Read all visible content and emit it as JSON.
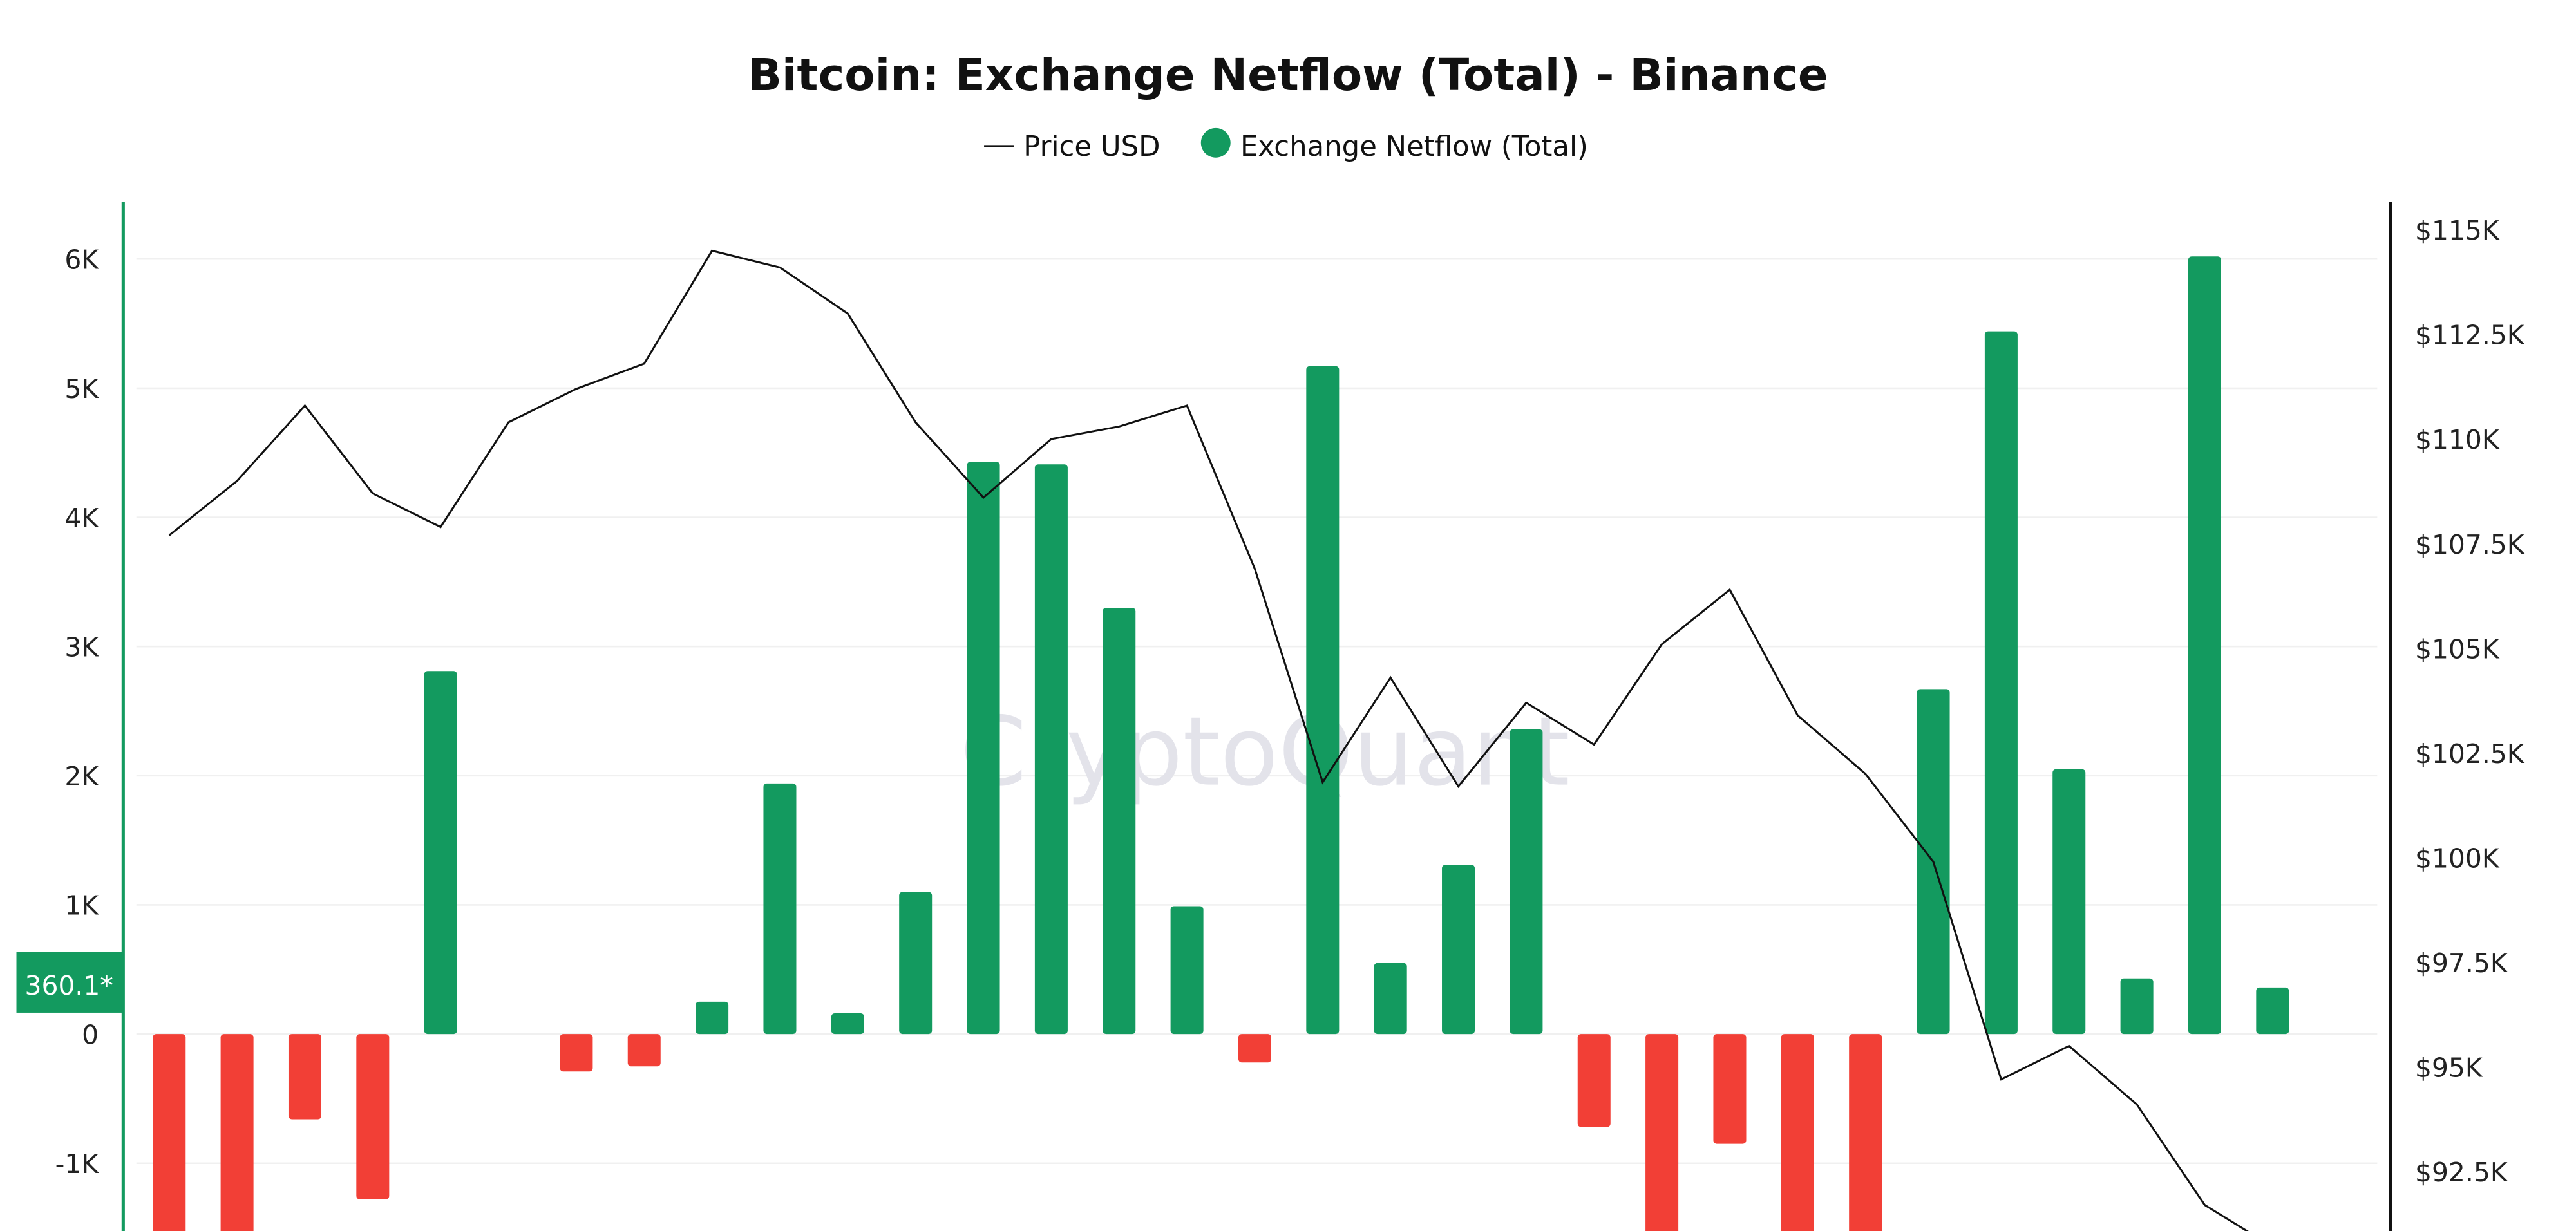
{
  "chart_data": {
    "type": "bar",
    "title": "Bitcoin: Exchange Netflow (Total) - Binance",
    "legend": {
      "placement": "top-center",
      "items": [
        "Price USD",
        "Exchange Netflow (Total)"
      ]
    },
    "grid": true,
    "watermark": "CryptoQuant",
    "last_value_label": "360.1*",
    "left_axis": {
      "ticks": [
        -1000,
        0,
        1000,
        2000,
        3000,
        4000,
        5000,
        6000
      ],
      "tick_labels": [
        "-1K",
        "0",
        "1K",
        "2K",
        "3K",
        "4K",
        "5K",
        "6K"
      ],
      "ylim": [
        -1520,
        6200
      ]
    },
    "right_axis": {
      "ticks": [
        92500,
        95000,
        97500,
        100000,
        102500,
        105000,
        107500,
        110000,
        112500,
        115000
      ],
      "tick_labels": [
        "$92.5K",
        "$95K",
        "$97.5K",
        "$100K",
        "$102.5K",
        "$105K",
        "$107.5K",
        "$110K",
        "$112.5K",
        "$115K"
      ],
      "ylim": [
        90700,
        115700
      ]
    },
    "series": [
      {
        "name": "Exchange Netflow (Total)",
        "type": "bar",
        "color_positive": "#139a5f",
        "color_negative": "#f23f36",
        "values": [
          -1800,
          -1800,
          -660,
          -1280,
          2810,
          0,
          -290,
          -250,
          250,
          1940,
          160,
          1100,
          4430,
          4410,
          3300,
          990,
          -220,
          5170,
          550,
          1310,
          2360,
          -720,
          -1800,
          -850,
          -1800,
          -1800,
          2670,
          5440,
          2050,
          430,
          6020,
          360.1
        ]
      },
      {
        "name": "Price USD",
        "type": "line",
        "color": "#111111",
        "values": [
          107700,
          109000,
          110800,
          108700,
          107900,
          110400,
          111200,
          111800,
          114500,
          114100,
          113000,
          110400,
          108600,
          110000,
          110300,
          110800,
          106900,
          101800,
          104300,
          101700,
          103700,
          102700,
          105100,
          106400,
          103400,
          102000,
          99900,
          94700,
          95500,
          94100,
          91700,
          90700
        ]
      }
    ],
    "colors": {
      "left_axis": "#139a5f",
      "right_axis": "#111111",
      "watermark": "#e3e3ea"
    }
  }
}
